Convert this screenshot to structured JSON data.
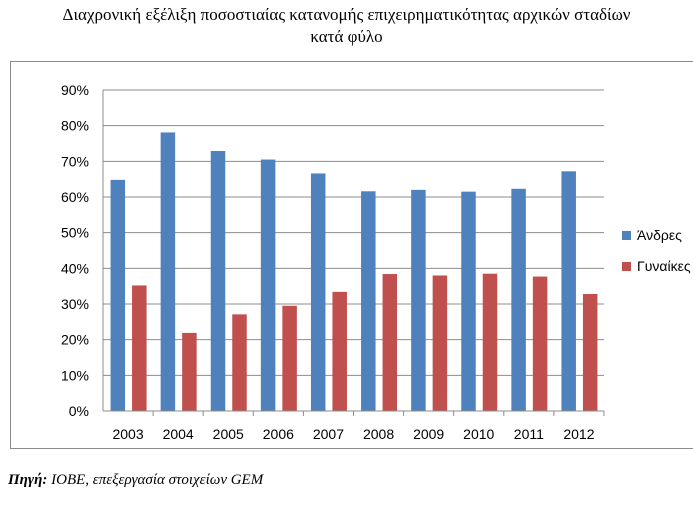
{
  "chart_data": {
    "type": "bar",
    "title": "Διαχρονική εξέλιξη ποσοστιαίας κατανομής επιχειρηματικότητας αρχικών σταδίων κατά φύλο",
    "title_lines": [
      "Διαχρονική εξέλιξη ποσοστιαίας κατανομής επιχειρηματικότητας αρχικών σταδίων",
      "κατά φύλο"
    ],
    "categories": [
      "2003",
      "2004",
      "2005",
      "2006",
      "2007",
      "2008",
      "2009",
      "2010",
      "2011",
      "2012"
    ],
    "series": [
      {
        "name": "Άνδρες",
        "color": "#4f81bd",
        "values": [
          64.8,
          78.1,
          72.9,
          70.5,
          66.6,
          61.6,
          62.0,
          61.5,
          62.3,
          67.2
        ]
      },
      {
        "name": "Γυναίκες",
        "color": "#c0504d",
        "values": [
          35.2,
          21.9,
          27.1,
          29.5,
          33.4,
          38.4,
          38.0,
          38.5,
          37.7,
          32.8
        ]
      }
    ],
    "ylim": [
      0,
      90
    ],
    "yticks": [
      0,
      10,
      20,
      30,
      40,
      50,
      60,
      70,
      80,
      90
    ],
    "ytick_labels": [
      "0%",
      "10%",
      "20%",
      "30%",
      "40%",
      "50%",
      "60%",
      "70%",
      "80%",
      "90%"
    ],
    "grid": true,
    "legend": "right",
    "xlabel": "",
    "ylabel": ""
  },
  "source": {
    "label": "Πηγή:",
    "text": " ΙΟΒΕ, επεξεργασία στοιχείων GEM"
  }
}
